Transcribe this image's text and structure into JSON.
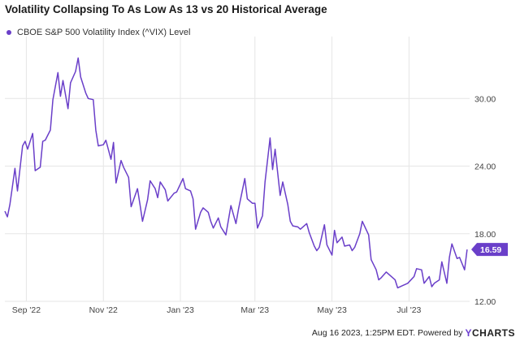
{
  "title": "Volatility Collapsing To As Low As 13 vs 20 Historical Average",
  "legend_label": "CBOE S&P 500 Volatility Index (^VIX) Level",
  "footer": {
    "text": "Aug 16 2023, 1:25PM EDT.  Powered by ",
    "brand_y": "Y",
    "brand_rest": "CHARTS"
  },
  "colors": {
    "series": "#6a3fc9",
    "grid": "#e6e6e6",
    "axis_text": "#444444"
  },
  "chart_data": {
    "type": "line",
    "series": [
      {
        "name": "CBOE S&P 500 Volatility Index (^VIX) Level",
        "last_value_label": "16.59",
        "dates": [
          "2022-08-15",
          "2022-08-17",
          "2022-08-19",
          "2022-08-23",
          "2022-08-25",
          "2022-08-29",
          "2022-08-31",
          "2022-09-02",
          "2022-09-06",
          "2022-09-08",
          "2022-09-12",
          "2022-09-14",
          "2022-09-16",
          "2022-09-20",
          "2022-09-22",
          "2022-09-26",
          "2022-09-28",
          "2022-09-30",
          "2022-10-04",
          "2022-10-06",
          "2022-10-10",
          "2022-10-12",
          "2022-10-14",
          "2022-10-18",
          "2022-10-20",
          "2022-10-24",
          "2022-10-26",
          "2022-10-28",
          "2022-11-01",
          "2022-11-03",
          "2022-11-07",
          "2022-11-09",
          "2022-11-11",
          "2022-11-15",
          "2022-11-17",
          "2022-11-21",
          "2022-11-23",
          "2022-11-28",
          "2022-11-30",
          "2022-12-02",
          "2022-12-06",
          "2022-12-08",
          "2022-12-12",
          "2022-12-14",
          "2022-12-16",
          "2022-12-20",
          "2022-12-22",
          "2022-12-27",
          "2022-12-29",
          "2023-01-03",
          "2023-01-05",
          "2023-01-09",
          "2023-01-11",
          "2023-01-13",
          "2023-01-17",
          "2023-01-19",
          "2023-01-23",
          "2023-01-25",
          "2023-01-27",
          "2023-01-31",
          "2023-02-02",
          "2023-02-06",
          "2023-02-08",
          "2023-02-10",
          "2023-02-14",
          "2023-02-16",
          "2023-02-21",
          "2023-02-23",
          "2023-02-27",
          "2023-03-01",
          "2023-03-03",
          "2023-03-07",
          "2023-03-09",
          "2023-03-13",
          "2023-03-15",
          "2023-03-17",
          "2023-03-21",
          "2023-03-23",
          "2023-03-27",
          "2023-03-29",
          "2023-03-31",
          "2023-04-04",
          "2023-04-06",
          "2023-04-11",
          "2023-04-13",
          "2023-04-17",
          "2023-04-19",
          "2023-04-21",
          "2023-04-25",
          "2023-04-27",
          "2023-05-01",
          "2023-05-03",
          "2023-05-05",
          "2023-05-09",
          "2023-05-11",
          "2023-05-15",
          "2023-05-17",
          "2023-05-19",
          "2023-05-23",
          "2023-05-25",
          "2023-05-30",
          "2023-06-01",
          "2023-06-05",
          "2023-06-07",
          "2023-06-09",
          "2023-06-13",
          "2023-06-15",
          "2023-06-20",
          "2023-06-22",
          "2023-06-26",
          "2023-06-28",
          "2023-06-30",
          "2023-07-05",
          "2023-07-07",
          "2023-07-11",
          "2023-07-13",
          "2023-07-17",
          "2023-07-19",
          "2023-07-21",
          "2023-07-25",
          "2023-07-27",
          "2023-07-31",
          "2023-08-02",
          "2023-08-04",
          "2023-08-08",
          "2023-08-10",
          "2023-08-14",
          "2023-08-16"
        ],
        "values": [
          20.0,
          19.5,
          20.6,
          23.8,
          21.8,
          25.8,
          26.2,
          25.5,
          26.9,
          23.6,
          23.9,
          26.2,
          26.3,
          27.2,
          29.9,
          32.3,
          30.2,
          31.6,
          29.1,
          31.4,
          32.4,
          33.6,
          31.9,
          30.5,
          30.0,
          29.9,
          27.2,
          25.8,
          25.9,
          26.3,
          24.6,
          26.1,
          22.5,
          24.5,
          23.9,
          23.0,
          20.4,
          22.0,
          20.6,
          19.1,
          21.0,
          22.7,
          22.0,
          21.2,
          22.6,
          21.9,
          20.9,
          21.6,
          21.7,
          22.9,
          22.0,
          21.8,
          21.1,
          18.4,
          19.9,
          20.3,
          19.9,
          19.1,
          18.5,
          19.4,
          18.6,
          17.9,
          19.2,
          20.5,
          18.9,
          20.2,
          22.9,
          21.1,
          20.7,
          20.7,
          18.5,
          19.6,
          22.6,
          26.5,
          23.7,
          25.5,
          21.4,
          22.6,
          20.6,
          19.1,
          18.7,
          18.6,
          18.4,
          18.9,
          18.1,
          16.9,
          16.5,
          16.8,
          18.8,
          17.0,
          16.1,
          18.3,
          17.2,
          17.7,
          16.9,
          17.0,
          16.5,
          16.8,
          18.0,
          19.1,
          17.9,
          15.7,
          14.8,
          13.9,
          14.1,
          14.6,
          14.4,
          13.9,
          13.2,
          13.4,
          13.5,
          13.6,
          14.2,
          14.9,
          14.8,
          13.6,
          14.2,
          13.3,
          13.6,
          13.9,
          15.5,
          13.6,
          15.9,
          17.1,
          15.8,
          15.9,
          14.8,
          16.6
        ]
      }
    ],
    "x_ticks": [
      {
        "label": "Sep '22",
        "date": "2022-09-01"
      },
      {
        "label": "Nov '22",
        "date": "2022-11-01"
      },
      {
        "label": "Jan '23",
        "date": "2023-01-01"
      },
      {
        "label": "Mar '23",
        "date": "2023-03-01"
      },
      {
        "label": "May '23",
        "date": "2023-05-01"
      },
      {
        "label": "Jul '23",
        "date": "2023-07-01"
      }
    ],
    "y_ticks": [
      {
        "label": "12.00",
        "value": 12
      },
      {
        "label": "18.00",
        "value": 18
      },
      {
        "label": "24.00",
        "value": 24
      },
      {
        "label": "30.00",
        "value": 30
      }
    ],
    "xlim": [
      "2022-08-15",
      "2023-08-18"
    ],
    "ylim": [
      12,
      35.5
    ],
    "grid": true,
    "y_axis_side": "right",
    "legend_position": "top-left"
  }
}
